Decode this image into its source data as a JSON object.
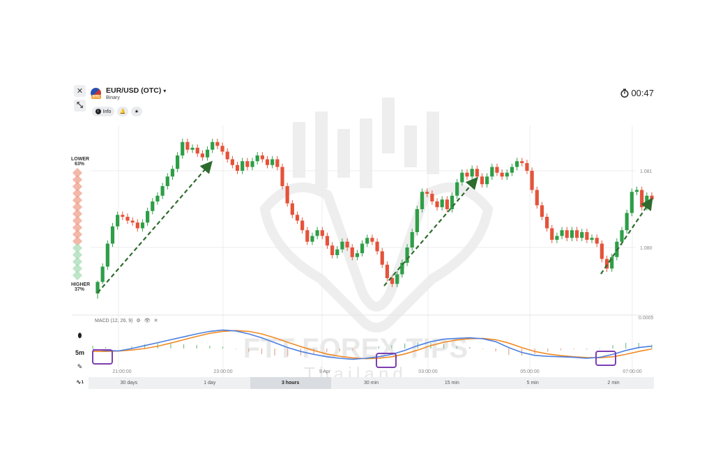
{
  "header": {
    "asset_name": "EUR/USD (OTC)",
    "asset_type": "Binary",
    "flag_badge": "OTC",
    "info_label": "Info",
    "timer": "00:47"
  },
  "sidebar": {
    "lower_label": "LOWER",
    "lower_pct": "63%",
    "higher_label": "HIGHER",
    "higher_pct": "37%"
  },
  "left_tools": {
    "timeframe": "5m",
    "indicator_badge": "1"
  },
  "macd": {
    "label": "MACD (12, 26, 9)"
  },
  "timeframes": [
    "30 days",
    "1 day",
    "3 hours",
    "30 min",
    "15 min",
    "5 min",
    "2 min"
  ],
  "active_timeframe": "3 hours",
  "watermark": {
    "text": "FTT FOREX TIPS",
    "sub": "Thailand"
  },
  "colors": {
    "up": "#2e9e47",
    "down": "#e4533a",
    "macd_line": "#4a7fe0",
    "signal_line": "#f08a24",
    "arrow": "#2e6b2e",
    "highlight": "#7b3fb0"
  },
  "chart_data": {
    "type": "candlestick",
    "price_ticks": [
      "1.081",
      "1.080"
    ],
    "macd_tick": "0.0005",
    "time_ticks": [
      "21:00:00",
      "23:00:00",
      "9 Apr",
      "03:00:00",
      "05:00:00",
      "07:00:00"
    ],
    "ohlc": [
      [
        -2.2,
        -1.9,
        -2.25,
        -2.3
      ],
      [
        -1.9,
        -1.5,
        -1.92,
        -1.45
      ],
      [
        -1.5,
        -0.9,
        -1.55,
        -0.85
      ],
      [
        -0.9,
        -0.45,
        -0.95,
        -0.4
      ],
      [
        -0.45,
        -0.15,
        -0.5,
        -0.1
      ],
      [
        -0.15,
        -0.2,
        -0.1,
        -0.25
      ],
      [
        -0.2,
        -0.3,
        -0.15,
        -0.35
      ],
      [
        -0.3,
        -0.35,
        -0.25,
        -0.4
      ],
      [
        -0.35,
        -0.5,
        -0.3,
        -0.55
      ],
      [
        -0.5,
        -0.35,
        -0.55,
        -0.3
      ],
      [
        -0.35,
        -0.05,
        -0.4,
        0.0
      ],
      [
        -0.05,
        0.2,
        -0.1,
        0.25
      ],
      [
        0.2,
        0.35,
        0.15,
        0.4
      ],
      [
        0.35,
        0.6,
        0.3,
        0.65
      ],
      [
        0.6,
        0.85,
        0.55,
        0.9
      ],
      [
        0.85,
        1.05,
        0.8,
        1.1
      ],
      [
        1.05,
        1.4,
        1.0,
        1.45
      ],
      [
        1.4,
        1.75,
        1.35,
        1.8
      ],
      [
        1.75,
        1.55,
        1.8,
        1.5
      ],
      [
        1.55,
        1.6,
        1.5,
        1.65
      ],
      [
        1.6,
        1.45,
        1.65,
        1.4
      ],
      [
        1.45,
        1.35,
        1.5,
        1.3
      ],
      [
        1.35,
        1.55,
        1.3,
        1.6
      ],
      [
        1.55,
        1.75,
        1.5,
        1.8
      ],
      [
        1.75,
        1.65,
        1.8,
        1.6
      ],
      [
        1.65,
        1.5,
        1.7,
        1.45
      ],
      [
        1.5,
        1.3,
        1.55,
        1.25
      ],
      [
        1.3,
        1.15,
        1.35,
        1.1
      ],
      [
        1.15,
        1.0,
        1.2,
        0.95
      ],
      [
        1.0,
        1.25,
        0.95,
        1.3
      ],
      [
        1.25,
        1.1,
        1.3,
        1.05
      ],
      [
        1.1,
        1.25,
        1.05,
        1.3
      ],
      [
        1.25,
        1.4,
        1.2,
        1.45
      ],
      [
        1.4,
        1.3,
        1.45,
        1.25
      ],
      [
        1.3,
        1.15,
        1.35,
        1.1
      ],
      [
        1.15,
        1.3,
        1.1,
        1.35
      ],
      [
        1.3,
        1.1,
        1.35,
        1.05
      ],
      [
        1.1,
        0.6,
        1.15,
        0.55
      ],
      [
        0.6,
        0.15,
        0.65,
        0.1
      ],
      [
        0.15,
        -0.15,
        0.2,
        -0.2
      ],
      [
        -0.15,
        -0.3,
        -0.1,
        -0.35
      ],
      [
        -0.3,
        -0.55,
        -0.25,
        -0.6
      ],
      [
        -0.55,
        -0.85,
        -0.5,
        -0.9
      ],
      [
        -0.85,
        -0.7,
        -0.9,
        -0.65
      ],
      [
        -0.7,
        -0.55,
        -0.75,
        -0.5
      ],
      [
        -0.55,
        -0.7,
        -0.5,
        -0.75
      ],
      [
        -0.7,
        -0.95,
        -0.65,
        -1.0
      ],
      [
        -0.95,
        -1.2,
        -0.9,
        -1.25
      ],
      [
        -1.2,
        -1.05,
        -1.25,
        -1.0
      ],
      [
        -1.05,
        -0.85,
        -1.1,
        -0.8
      ],
      [
        -0.85,
        -1.0,
        -0.8,
        -1.05
      ],
      [
        -1.0,
        -1.25,
        -0.95,
        -1.3
      ],
      [
        -1.25,
        -1.15,
        -1.3,
        -1.1
      ],
      [
        -1.15,
        -0.9,
        -1.2,
        -0.85
      ],
      [
        -0.9,
        -0.75,
        -0.95,
        -0.7
      ],
      [
        -0.75,
        -0.85,
        -0.7,
        -0.9
      ],
      [
        -0.85,
        -1.1,
        -0.8,
        -1.15
      ],
      [
        -1.1,
        -1.45,
        -1.05,
        -1.5
      ],
      [
        -1.45,
        -1.8,
        -1.4,
        -1.85
      ],
      [
        -1.8,
        -1.95,
        -1.75,
        -2.0
      ],
      [
        -1.95,
        -1.7,
        -2.0,
        -1.65
      ],
      [
        -1.7,
        -1.4,
        -1.75,
        -1.35
      ],
      [
        -1.4,
        -1.0,
        -1.45,
        -0.95
      ],
      [
        -1.0,
        -0.6,
        -1.05,
        -0.55
      ],
      [
        -0.6,
        0.0,
        -0.65,
        0.05
      ],
      [
        0.0,
        0.45,
        -0.05,
        0.5
      ],
      [
        0.45,
        0.4,
        0.5,
        0.35
      ],
      [
        0.4,
        0.2,
        0.45,
        0.15
      ],
      [
        0.2,
        0.05,
        0.25,
        0.0
      ],
      [
        0.05,
        0.25,
        0.0,
        0.3
      ],
      [
        0.25,
        0.0,
        0.3,
        -0.05
      ],
      [
        0.0,
        0.35,
        -0.05,
        0.4
      ],
      [
        0.35,
        0.7,
        0.3,
        0.75
      ],
      [
        0.7,
        0.95,
        0.65,
        1.0
      ],
      [
        0.95,
        0.85,
        1.0,
        0.8
      ],
      [
        0.85,
        1.05,
        0.8,
        1.1
      ],
      [
        1.05,
        0.85,
        1.1,
        0.8
      ],
      [
        0.85,
        0.65,
        0.9,
        0.6
      ],
      [
        0.65,
        0.85,
        0.6,
        0.9
      ],
      [
        0.85,
        1.1,
        0.8,
        1.15
      ],
      [
        1.1,
        0.95,
        1.15,
        0.9
      ],
      [
        0.95,
        0.85,
        1.0,
        0.8
      ],
      [
        0.85,
        0.95,
        0.8,
        1.0
      ],
      [
        0.95,
        1.1,
        0.9,
        1.15
      ],
      [
        1.1,
        1.25,
        1.05,
        1.3
      ],
      [
        1.25,
        1.2,
        1.3,
        1.15
      ],
      [
        1.2,
        1.0,
        1.25,
        0.95
      ],
      [
        1.0,
        0.5,
        1.05,
        0.45
      ],
      [
        0.5,
        0.1,
        0.55,
        0.05
      ],
      [
        0.1,
        -0.2,
        0.15,
        -0.25
      ],
      [
        -0.2,
        -0.5,
        -0.15,
        -0.55
      ],
      [
        -0.5,
        -0.8,
        -0.45,
        -0.85
      ],
      [
        -0.8,
        -0.7,
        -0.85,
        -0.65
      ],
      [
        -0.7,
        -0.55,
        -0.75,
        -0.5
      ],
      [
        -0.55,
        -0.75,
        -0.5,
        -0.8
      ],
      [
        -0.75,
        -0.55,
        -0.8,
        -0.5
      ],
      [
        -0.55,
        -0.75,
        -0.5,
        -0.8
      ],
      [
        -0.75,
        -0.6,
        -0.8,
        -0.55
      ],
      [
        -0.6,
        -0.8,
        -0.55,
        -0.85
      ],
      [
        -0.8,
        -0.75,
        -0.85,
        -0.7
      ],
      [
        -0.75,
        -0.9,
        -0.7,
        -0.95
      ],
      [
        -0.9,
        -1.3,
        -0.85,
        -1.35
      ],
      [
        -1.3,
        -1.55,
        -1.25,
        -1.6
      ],
      [
        -1.55,
        -1.25,
        -1.6,
        -1.2
      ],
      [
        -1.25,
        -0.85,
        -1.3,
        -0.8
      ],
      [
        -0.85,
        -0.55,
        -0.9,
        -0.5
      ],
      [
        -0.55,
        -0.1,
        -0.6,
        -0.05
      ],
      [
        -0.1,
        0.45,
        -0.15,
        0.5
      ],
      [
        0.45,
        0.5,
        0.4,
        0.55
      ],
      [
        0.5,
        0.05,
        0.55,
        0.0
      ],
      [
        0.05,
        0.35,
        0.0,
        0.4
      ],
      [
        0.35,
        0.25,
        0.4,
        0.2
      ]
    ],
    "macd_line": [
      -0.05,
      -0.1,
      -0.12,
      0.0,
      0.15,
      0.3,
      0.45,
      0.6,
      0.75,
      0.88,
      0.95,
      0.9,
      0.75,
      0.55,
      0.3,
      0.05,
      -0.15,
      -0.3,
      -0.42,
      -0.5,
      -0.55,
      -0.5,
      -0.42,
      -0.3,
      -0.1,
      0.15,
      0.35,
      0.48,
      0.52,
      0.55,
      0.5,
      0.35,
      0.05,
      -0.2,
      -0.35,
      -0.4,
      -0.42,
      -0.45,
      -0.5,
      -0.45,
      -0.3,
      -0.1,
      0.05,
      0.12
    ],
    "signal_line": [
      -0.15,
      -0.15,
      -0.13,
      -0.08,
      0.0,
      0.12,
      0.28,
      0.45,
      0.62,
      0.78,
      0.88,
      0.92,
      0.88,
      0.75,
      0.55,
      0.32,
      0.1,
      -0.1,
      -0.28,
      -0.4,
      -0.48,
      -0.52,
      -0.5,
      -0.42,
      -0.28,
      -0.08,
      0.15,
      0.32,
      0.44,
      0.5,
      0.52,
      0.45,
      0.28,
      0.05,
      -0.15,
      -0.28,
      -0.36,
      -0.42,
      -0.46,
      -0.47,
      -0.42,
      -0.3,
      -0.15,
      -0.02
    ]
  }
}
